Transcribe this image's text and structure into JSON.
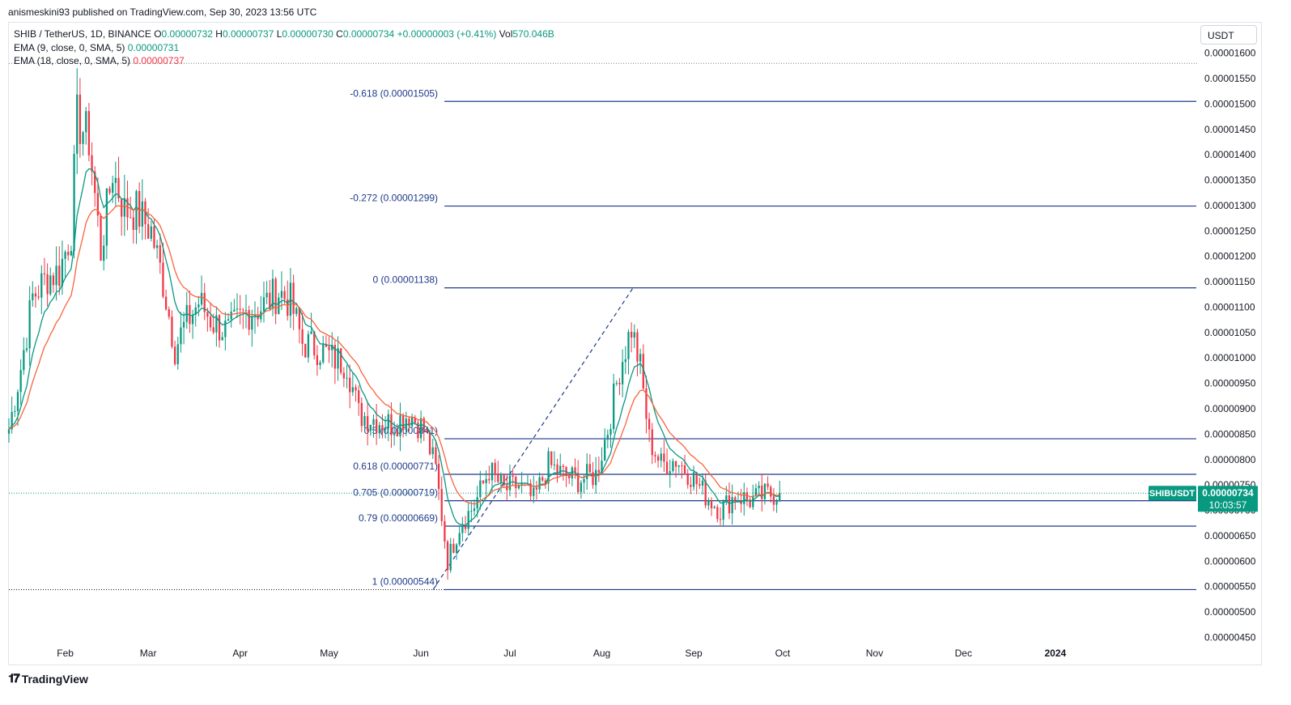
{
  "caption": "anismeskini93 published on TradingView.com, Sep 30, 2023 13:56 UTC",
  "currency_button": "USDT",
  "legend": {
    "symbol": "SHIB / TetherUS, 1D, BINANCE",
    "open_label": "O",
    "open": "0.00000732",
    "high_label": "H",
    "high": "0.00000737",
    "low_label": "L",
    "low": "0.00000730",
    "close_label": "C",
    "close": "0.00000734",
    "change": "+0.00000003 (+0.41%)",
    "vol_label": "Vol",
    "vol": "570.046B",
    "ema1_label": "EMA (9, close, 0, SMA, 5)",
    "ema1_value": "0.00000731",
    "ema2_label": "EMA (18, close, 0, SMA, 5)",
    "ema2_value": "0.00000737"
  },
  "price_tag": {
    "symbol": "SHIBUSDT",
    "price": "0.00000734",
    "countdown": "10:03:57"
  },
  "footer": {
    "brand": "TradingView",
    "logo": "𝟏𝟕"
  },
  "colors": {
    "up": "#089981",
    "down": "#f23645",
    "fib": "#1e3a8a",
    "ema9": "#089981",
    "ema18": "#f7643d",
    "price_tag": "#089981"
  },
  "chart_data": {
    "type": "candlestick",
    "title": "SHIB / TetherUS, 1D, BINANCE",
    "y_axis": {
      "ticks": [
        "0.00000450",
        "0.00000500",
        "0.00000550",
        "0.00000600",
        "0.00000650",
        "0.00000700",
        "0.00000750",
        "0.00000800",
        "0.00000850",
        "0.00000900",
        "0.00000950",
        "0.00001000",
        "0.00001050",
        "0.00001100",
        "0.00001150",
        "0.00001200",
        "0.00001250",
        "0.00001300",
        "0.00001350",
        "0.00001400",
        "0.00001450",
        "0.00001500",
        "0.00001550",
        "0.00001600"
      ],
      "range": [
        4.3e-06,
        1.66e-05
      ],
      "position": "right"
    },
    "x_axis": {
      "ticks": [
        "Feb",
        "Mar",
        "Apr",
        "May",
        "Jun",
        "Jul",
        "Aug",
        "Sep",
        "Oct",
        "Nov",
        "Dec",
        "2024"
      ],
      "range": [
        "2023-01-13",
        "2024-02-17"
      ]
    },
    "fib_levels": [
      {
        "label": "-0.618 (0.00001505)",
        "value": 1.505e-05
      },
      {
        "label": "-0.272 (0.00001299)",
        "value": 1.299e-05
      },
      {
        "label": "0 (0.00001138)",
        "value": 1.138e-05
      },
      {
        "label": "0.5 (0.00000841)",
        "value": 8.41e-06
      },
      {
        "label": "0.618 (0.00000771)",
        "value": 7.71e-06
      },
      {
        "label": "0.705 (0.00000719)",
        "value": 7.19e-06
      },
      {
        "label": "0.79 (0.00000669)",
        "value": 6.69e-06
      },
      {
        "label": "1 (0.00000544)",
        "value": 5.44e-06
      }
    ],
    "fib_trend_line": {
      "from": {
        "date": "2023-06-10",
        "value": 5.44e-06
      },
      "to": {
        "date": "2023-08-11",
        "value": 1.138e-05
      }
    },
    "year_high": 1.58e-05,
    "current_price": 7.34e-06,
    "series": [
      {
        "name": "EMA (9, close, 0, SMA, 5)",
        "role": "ema9"
      },
      {
        "name": "EMA (18, close, 0, SMA, 5)",
        "role": "ema18"
      }
    ],
    "price_path": [
      [
        "2023-01-13",
        8.6e-06
      ],
      [
        "2023-01-17",
        9.8e-06
      ],
      [
        "2023-01-21",
        1.12e-05
      ],
      [
        "2023-01-26",
        1.16e-05
      ],
      [
        "2023-01-30",
        1.17e-05
      ],
      [
        "2023-02-03",
        1.25e-05
      ],
      [
        "2023-02-05",
        1.47e-05
      ],
      [
        "2023-02-09",
        1.43e-05
      ],
      [
        "2023-02-13",
        1.21e-05
      ],
      [
        "2023-02-17",
        1.37e-05
      ],
      [
        "2023-02-21",
        1.29e-05
      ],
      [
        "2023-02-25",
        1.29e-05
      ],
      [
        "2023-03-02",
        1.25e-05
      ],
      [
        "2023-03-06",
        1.15e-05
      ],
      [
        "2023-03-10",
        1.02e-05
      ],
      [
        "2023-03-13",
        1.06e-05
      ],
      [
        "2023-03-18",
        1.11e-05
      ],
      [
        "2023-03-23",
        1.07e-05
      ],
      [
        "2023-03-28",
        1.05e-05
      ],
      [
        "2023-04-03",
        1.09e-05
      ],
      [
        "2023-04-08",
        1.1e-05
      ],
      [
        "2023-04-14",
        1.13e-05
      ],
      [
        "2023-04-18",
        1.11e-05
      ],
      [
        "2023-04-22",
        1.03e-05
      ],
      [
        "2023-04-27",
        1.02e-05
      ],
      [
        "2023-05-02",
        1e-05
      ],
      [
        "2023-05-07",
        9.9e-06
      ],
      [
        "2023-05-11",
        8.9e-06
      ],
      [
        "2023-05-16",
        8.8e-06
      ],
      [
        "2023-05-22",
        8.7e-06
      ],
      [
        "2023-05-28",
        8.9e-06
      ],
      [
        "2023-06-02",
        8.6e-06
      ],
      [
        "2023-06-06",
        7.8e-06
      ],
      [
        "2023-06-10",
        6e-06
      ],
      [
        "2023-06-14",
        6.7e-06
      ],
      [
        "2023-06-19",
        7.1e-06
      ],
      [
        "2023-06-24",
        7.8e-06
      ],
      [
        "2023-06-29",
        7.4e-06
      ],
      [
        "2023-07-04",
        7.5e-06
      ],
      [
        "2023-07-09",
        7.2e-06
      ],
      [
        "2023-07-14",
        7.9e-06
      ],
      [
        "2023-07-19",
        7.7e-06
      ],
      [
        "2023-07-24",
        7.6e-06
      ],
      [
        "2023-07-30",
        7.7e-06
      ],
      [
        "2023-08-03",
        8.6e-06
      ],
      [
        "2023-08-07",
        9.8e-06
      ],
      [
        "2023-08-11",
        1.06e-05
      ],
      [
        "2023-08-14",
        9.8e-06
      ],
      [
        "2023-08-17",
        8.4e-06
      ],
      [
        "2023-08-21",
        7.9e-06
      ],
      [
        "2023-08-26",
        8e-06
      ],
      [
        "2023-08-31",
        7.7e-06
      ],
      [
        "2023-09-05",
        7.3e-06
      ],
      [
        "2023-09-10",
        7e-06
      ],
      [
        "2023-09-15",
        7.3e-06
      ],
      [
        "2023-09-20",
        7.2e-06
      ],
      [
        "2023-09-25",
        7.3e-06
      ],
      [
        "2023-09-30",
        7.34e-06
      ]
    ]
  }
}
